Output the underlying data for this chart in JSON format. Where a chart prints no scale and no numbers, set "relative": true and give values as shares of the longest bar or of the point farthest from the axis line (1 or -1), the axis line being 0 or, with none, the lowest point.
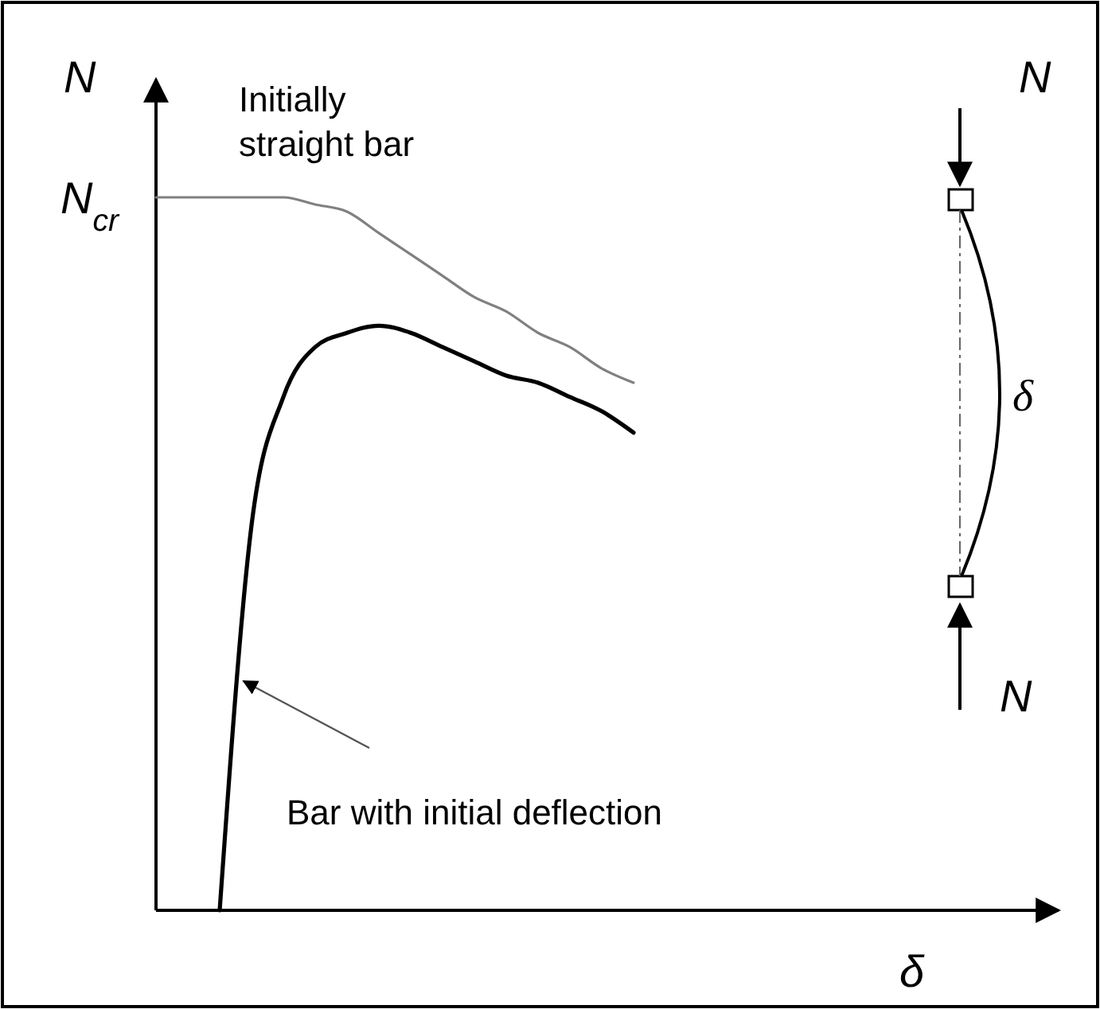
{
  "chart_data": {
    "type": "line",
    "relative": true,
    "xlabel": "δ",
    "ylabel": "N",
    "categories": [
      null,
      null,
      null,
      null,
      null,
      null,
      null,
      null,
      null,
      null,
      null,
      null,
      null,
      null,
      null,
      null,
      null,
      null,
      null,
      null,
      null,
      null,
      null,
      null,
      null,
      null,
      null,
      null,
      null
    ],
    "series": [
      {
        "color": "#808080",
        "values": [
          1,
          1,
          1,
          1,
          1,
          0.99,
          0.98,
          0.95,
          0.92,
          0.89,
          0.86,
          0.84,
          0.81,
          0.79,
          0.76,
          0.74,
          null,
          null,
          null,
          null,
          null,
          null,
          null,
          null,
          null,
          null,
          null,
          null,
          null
        ]
      },
      {
        "color": "#000000",
        "values": [
          null,
          null,
          0,
          0.54,
          0.72,
          0.79,
          0.81,
          0.82,
          0.81,
          0.79,
          0.77,
          0.75,
          0.74,
          0.72,
          0.7,
          0.67,
          null,
          null,
          null,
          null,
          null,
          null,
          null,
          null,
          null,
          null,
          null,
          null,
          null
        ]
      }
    ],
    "annotations": [
      "N$_{cr}$",
      "Initially\nstraight bar",
      "Bar with initial deflection",
      "N",
      "N",
      "δ"
    ]
  }
}
